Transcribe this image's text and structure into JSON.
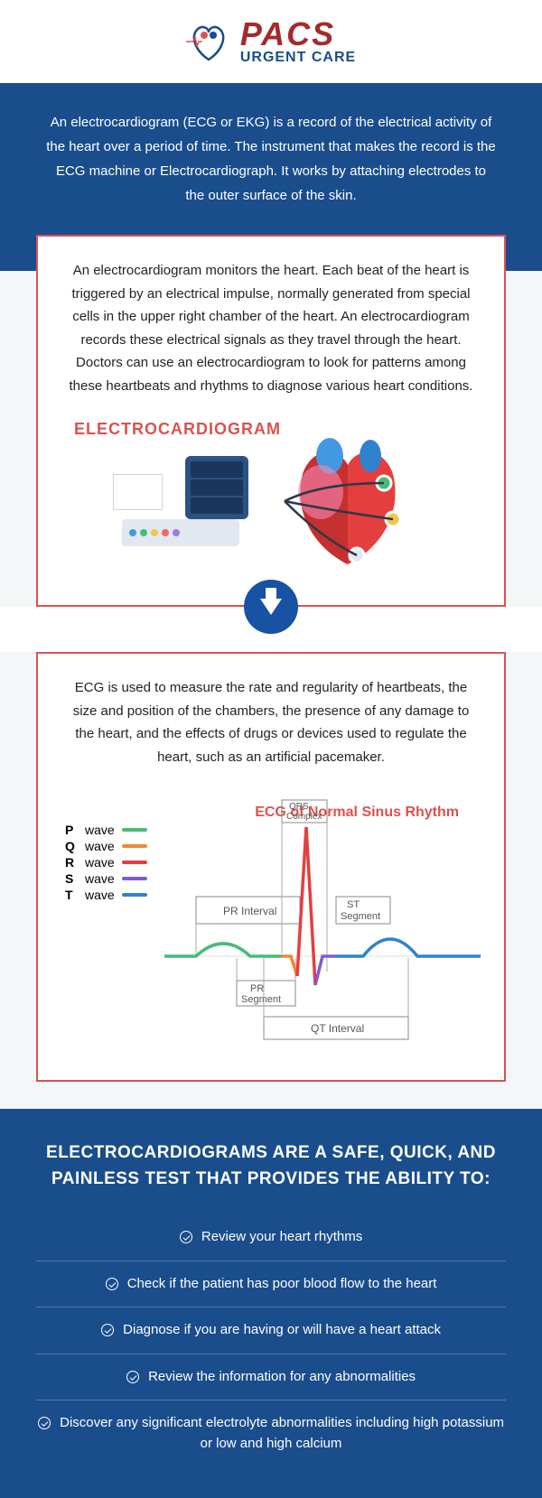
{
  "logo": {
    "main": "PACS",
    "sub": "URGENT CARE"
  },
  "colors": {
    "primary_blue": "#1a4d8c",
    "accent_red": "#d9534f",
    "logo_red": "#a52a2a",
    "bg_gray": "#f5f6f7",
    "arrow_blue": "#1752a3"
  },
  "intro": "An electrocardiogram (ECG or EKG) is a record of the electrical activity of the heart over a period of time. The instrument that makes the record is the ECG machine or Electrocardiograph. It works by attaching electrodes to the outer surface of the skin.",
  "box1": {
    "text": "An electrocardiogram monitors the heart. Each beat of the heart is triggered by an electrical impulse, normally generated from special cells in the upper right chamber of the heart. An electrocardiogram records these electrical signals as they travel through the heart. Doctors can use an electrocardiogram to look for patterns among these heartbeats and rhythms to diagnose various heart conditions.",
    "diagram_title": "ELECTROCARDIOGRAM",
    "machine_dots": [
      "#4299e1",
      "#48bb78",
      "#ecc94b",
      "#f56565",
      "#9f7aea"
    ]
  },
  "box2": {
    "text": "ECG is used to measure the rate and regularity of heartbeats, the size and position of the chambers, the presence of any damage to the heart, and the effects of drugs or devices used to regulate the heart, such as an artificial pacemaker.",
    "chart_title": "ECG of Normal Sinus Rhythm",
    "waves": [
      {
        "letter": "P",
        "label": "wave",
        "color": "#48bb78"
      },
      {
        "letter": "Q",
        "label": "wave",
        "color": "#ed8936"
      },
      {
        "letter": "R",
        "label": "wave",
        "color": "#e53e3e"
      },
      {
        "letter": "S",
        "label": "wave",
        "color": "#805ad5"
      },
      {
        "letter": "T",
        "label": "wave",
        "color": "#3182ce"
      }
    ],
    "segments": {
      "qrs": "QRS Complex",
      "pr_interval": "PR Interval",
      "pr_segment": "PR Segment",
      "st_segment": "ST Segment",
      "qt_interval": "QT Interval"
    }
  },
  "benefits": {
    "heading": "ELECTROCARDIOGRAMS ARE A SAFE, QUICK, AND PAINLESS TEST THAT PROVIDES THE ABILITY TO:",
    "items": [
      "Review your heart rhythms",
      "Check if the patient has poor blood flow to the heart",
      "Diagnose if you are having or will have a heart attack",
      "Review the information for any abnormalities",
      "Discover any significant electrolyte abnormalities including high potassium or low and high calcium"
    ]
  }
}
